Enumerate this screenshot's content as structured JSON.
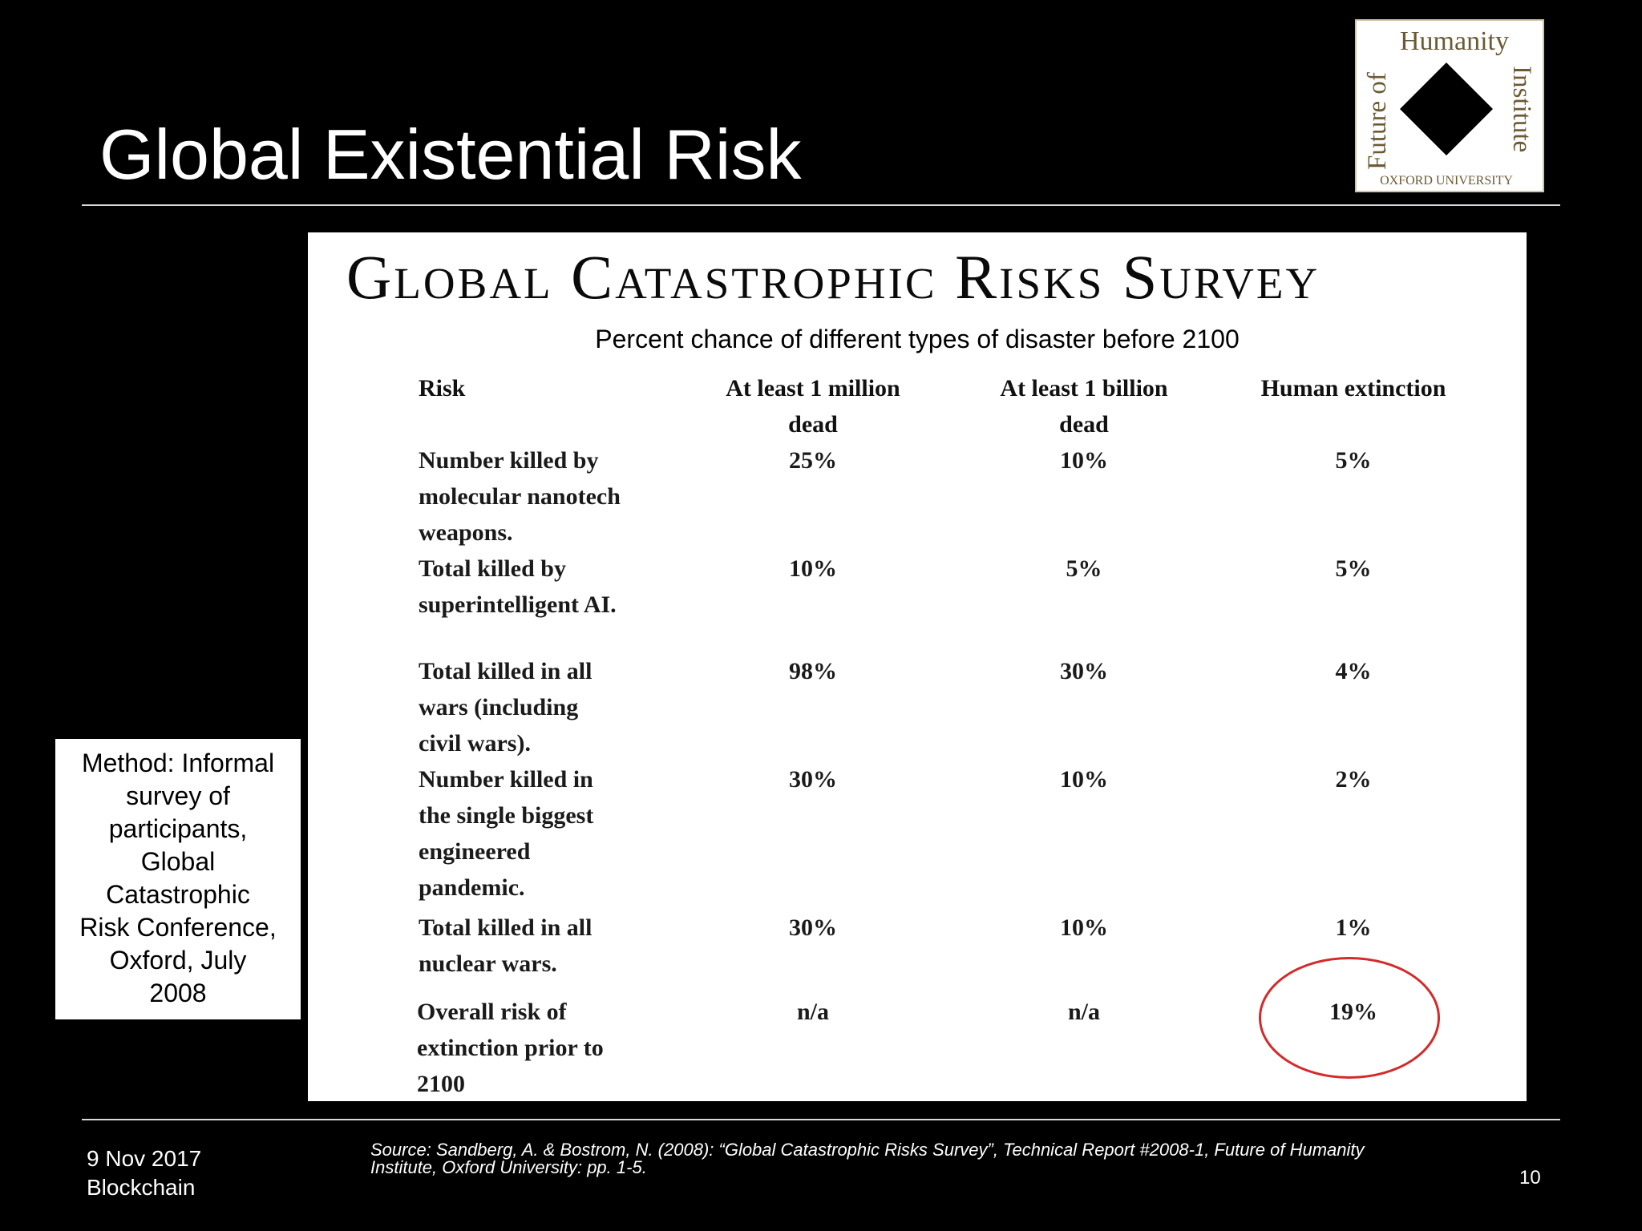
{
  "slide": {
    "title": "Global Existential Risk",
    "page_number": "10"
  },
  "logo": {
    "word_top": "Humanity",
    "word_left": "Future of",
    "word_right": "Institute",
    "word_bottom": "OXFORD UNIVERSITY"
  },
  "survey": {
    "heading": "Global Catastrophic Risks Survey",
    "subtitle": "Percent chance of different types of disaster before 2100",
    "columns": {
      "risk": "Risk",
      "million_line1": "At least 1 million",
      "million_line2": "dead",
      "billion_line1": "At least 1 billion",
      "billion_line2": "dead",
      "extinction": "Human extinction"
    },
    "rows": [
      {
        "risk": [
          "Number killed by",
          "molecular nanotech",
          "weapons."
        ],
        "million": "25%",
        "billion": "10%",
        "extinction": "5%"
      },
      {
        "risk": [
          "Total killed by",
          "superintelligent AI."
        ],
        "million": "10%",
        "billion": "5%",
        "extinction": "5%"
      },
      {
        "risk": [
          "Total killed in all",
          "wars (including",
          "civil wars)."
        ],
        "million": "98%",
        "billion": "30%",
        "extinction": "4%"
      },
      {
        "risk": [
          "Number killed in",
          "the single biggest",
          "engineered",
          "pandemic."
        ],
        "million": "30%",
        "billion": "10%",
        "extinction": "2%"
      },
      {
        "risk": [
          "Total killed in all",
          "nuclear wars."
        ],
        "million": "30%",
        "billion": "10%",
        "extinction": "1%"
      },
      {
        "risk": [
          "Overall risk of",
          "extinction prior to",
          "2100"
        ],
        "million": "n/a",
        "billion": "n/a",
        "extinction": "19%"
      }
    ],
    "highlight_color": "#d42a2a"
  },
  "method": {
    "lines": [
      "Method: Informal",
      "survey of",
      "participants,",
      "Global",
      "Catastrophic",
      "Risk Conference,",
      "Oxford, July",
      "2008"
    ]
  },
  "footer": {
    "date": "9 Nov 2017",
    "topic": "Blockchain",
    "source_line1": "Source: Sandberg, A. & Bostrom, N. (2008): “Global Catastrophic Risks Survey”, Technical Report #2008-1, Future of Humanity",
    "source_line2": "Institute, Oxford University: pp. 1-5."
  }
}
